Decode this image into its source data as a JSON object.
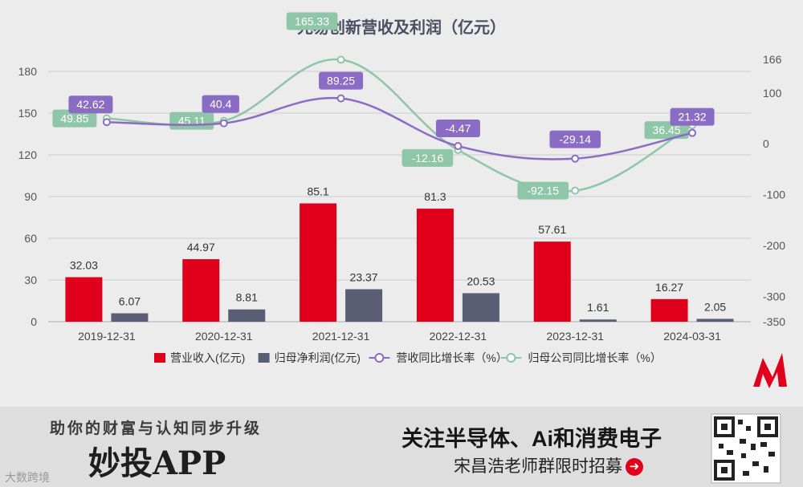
{
  "chart_data": {
    "type": "bar+line",
    "title": "兆易创新营收及利润（亿元）",
    "categories": [
      "2019-12-31",
      "2020-12-31",
      "2021-12-31",
      "2022-12-31",
      "2023-12-31",
      "2024-03-31"
    ],
    "left_axis": {
      "ticks": [
        0,
        30,
        60,
        90,
        120,
        150,
        180
      ],
      "ylim": [
        0,
        180
      ]
    },
    "right_axis": {
      "ticks": [
        -350,
        -300,
        -200,
        -100,
        0,
        100,
        166
      ],
      "ylim": [
        -350,
        166
      ]
    },
    "series": [
      {
        "name": "营业收入(亿元)",
        "type": "bar",
        "axis": "left",
        "color": "#e0001b",
        "values": [
          32.03,
          44.97,
          85.1,
          81.3,
          57.61,
          16.27
        ]
      },
      {
        "name": "归母净利润(亿元)",
        "type": "bar",
        "axis": "left",
        "color": "#5a5e74",
        "values": [
          6.07,
          8.81,
          23.37,
          20.53,
          1.61,
          2.05
        ]
      },
      {
        "name": "营收同比增长率（%）",
        "type": "line",
        "axis": "right",
        "color": "#8b6cc4",
        "values": [
          42.62,
          40.4,
          89.25,
          -4.47,
          -29.14,
          21.32
        ]
      },
      {
        "name": "归母公司同比增长率（%）",
        "type": "line",
        "axis": "right",
        "color": "#8fc6a7",
        "values": [
          49.85,
          45.11,
          165.33,
          -12.16,
          -92.15,
          36.45
        ]
      }
    ]
  },
  "footer": {
    "slogan": "助你的财富与认知同步升级",
    "app_name": "妙投APP",
    "follow_text": "关注半导体、Ai和消费电子",
    "recruit_text": "宋昌浩老师群限时招募",
    "watermark": "大数跨境"
  }
}
